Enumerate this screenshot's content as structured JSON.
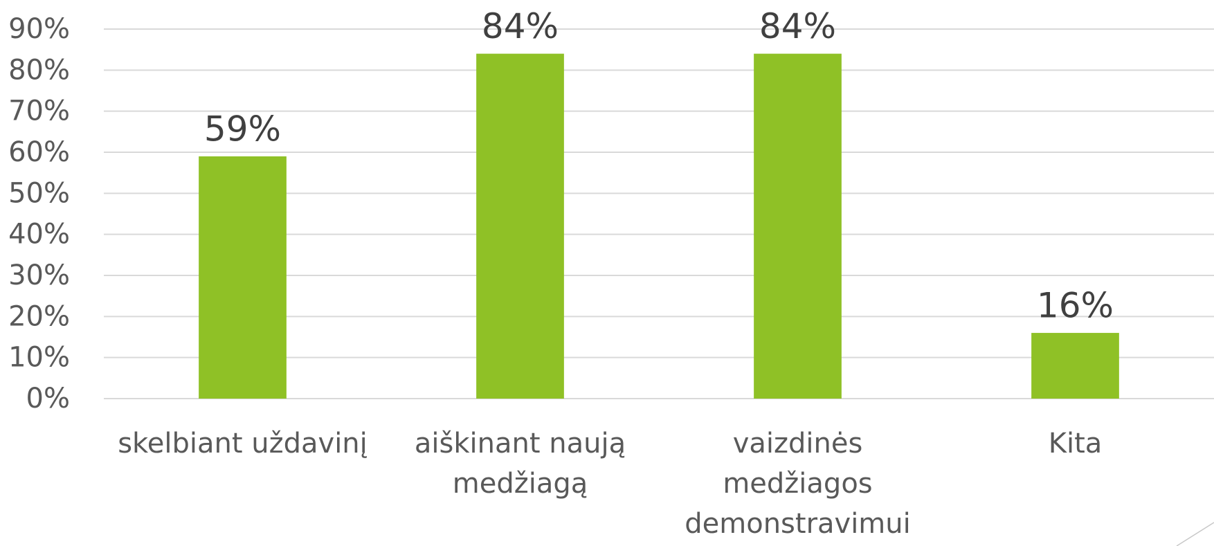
{
  "chart_data": {
    "type": "bar",
    "categories": [
      "skelbiant uždavinį",
      "aiškinant naują medžiagą",
      "vaizdinės medžiagos demonstravimui",
      "Kita"
    ],
    "values": [
      59,
      84,
      84,
      16
    ],
    "value_labels": [
      "59%",
      "84%",
      "84%",
      "16%"
    ],
    "color": "#8fc126",
    "ylim": [
      0,
      90
    ],
    "yticks": [
      {
        "value": 0,
        "label": "0%"
      },
      {
        "value": 10,
        "label": "10%"
      },
      {
        "value": 20,
        "label": "20%"
      },
      {
        "value": 30,
        "label": "30%"
      },
      {
        "value": 40,
        "label": "40%"
      },
      {
        "value": 50,
        "label": "50%"
      },
      {
        "value": 60,
        "label": "60%"
      },
      {
        "value": 70,
        "label": "70%"
      },
      {
        "value": 80,
        "label": "80%"
      },
      {
        "value": 90,
        "label": "90%"
      }
    ],
    "grid": true
  }
}
